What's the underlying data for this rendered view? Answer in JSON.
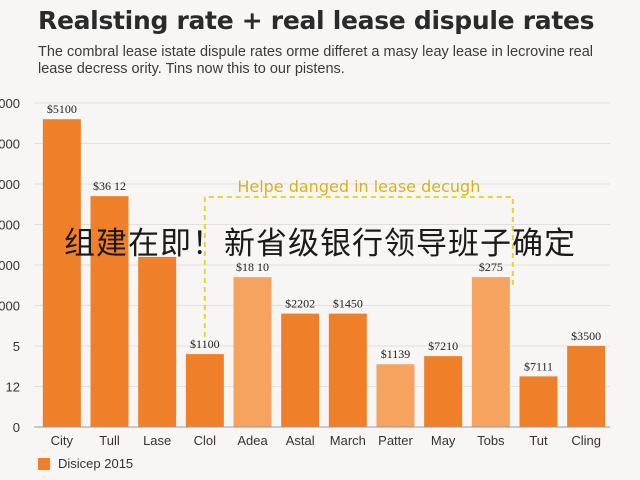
{
  "title": "Realsting rate + real lease dispule rates",
  "subtitle": "The combral lease istate dispule rates orme differet a masy leay lease in lecrovine real lease decress ority. Tins now this to our pistens.",
  "overlay_text": "组建在即！新省级银行领导班子确定",
  "colors": {
    "bar": "#f07f2a",
    "bar_light": "#f5a35e",
    "annotation": "#e6d23a",
    "axis": "#999999"
  },
  "chart_data": {
    "type": "bar",
    "categories": [
      "City",
      "Tull",
      "Lase",
      "Clol",
      "Adea",
      "Astal",
      "March",
      "Patter",
      "May",
      "Tobs",
      "Tut",
      "Cling"
    ],
    "series": [
      {
        "name": "Disicep 2015",
        "values": [
          7.6,
          5.7,
          4.2,
          1.8,
          3.7,
          2.8,
          2.8,
          1.55,
          1.75,
          3.7,
          1.25,
          2.0
        ]
      }
    ],
    "data_labels": [
      "$5100",
      "$36 12",
      "",
      "$1100",
      "$18 10",
      "$2202",
      "$1450",
      "$1139",
      "$7210",
      "$275",
      "$7111",
      "$3500"
    ],
    "y_ticks": [
      {
        "label": "0",
        "value": 0
      },
      {
        "label": "12",
        "value": 1
      },
      {
        "label": "5",
        "value": 2
      },
      {
        "label": "000",
        "value": 3
      },
      {
        "label": "000",
        "value": 4
      },
      {
        "label": "000",
        "value": 5
      },
      {
        "label": "000",
        "value": 6
      },
      {
        "label": "000",
        "value": 7
      },
      {
        "label": "000",
        "value": 8
      }
    ],
    "ylim": [
      0,
      8
    ],
    "annotation": {
      "text": "Helpe danged in lease decugh",
      "from_category": "Clol",
      "to_category": "Tobs"
    },
    "grid": true,
    "legend_position": "bottom-left"
  }
}
